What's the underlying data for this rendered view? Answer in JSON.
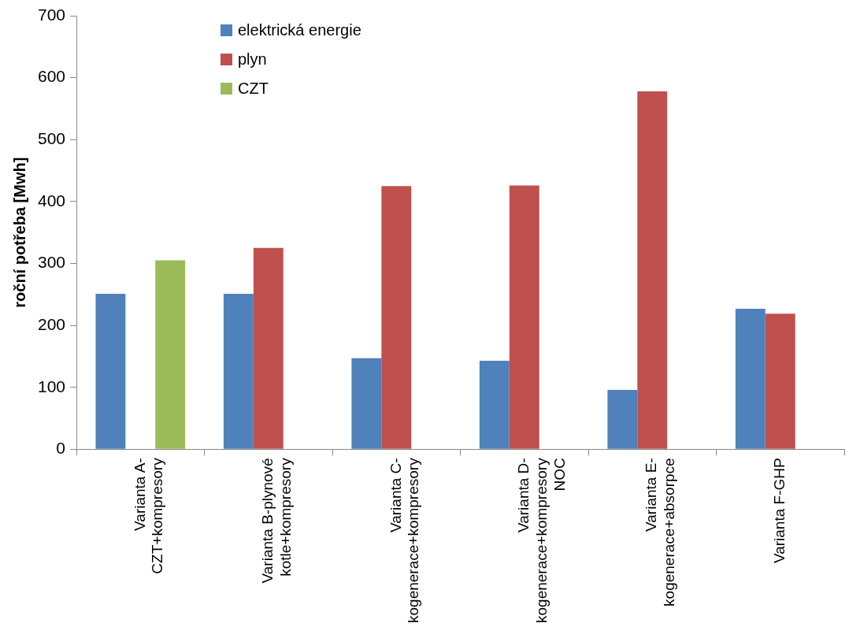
{
  "chart_data": {
    "type": "bar",
    "ylabel": "roční potřeba [Mwh]",
    "categories": [
      "Varianta A-\nCZT+kompresory",
      "Varianta B-plynové\nkotle+kompresory",
      "Varianta C-\nkogenerace+kompresory",
      "Varianta D-\nkogenerace+kompresory\nNOC",
      "Varianta E-\nkogenerace+absorpce",
      "Varianta F-GHP"
    ],
    "series": [
      {
        "name": "elektrická energie",
        "color": "#4f81bd",
        "values": [
          251,
          251,
          147,
          143,
          96,
          227
        ]
      },
      {
        "name": "plyn",
        "color": "#c0504d",
        "values": [
          null,
          325,
          425,
          426,
          578,
          219
        ]
      },
      {
        "name": "CZT",
        "color": "#9bbb59",
        "values": [
          305,
          null,
          null,
          null,
          null,
          null
        ]
      }
    ],
    "ylim": [
      0,
      700
    ],
    "yticks": [
      0,
      100,
      200,
      300,
      400,
      500,
      600,
      700
    ],
    "grid": false,
    "legend": "top"
  }
}
